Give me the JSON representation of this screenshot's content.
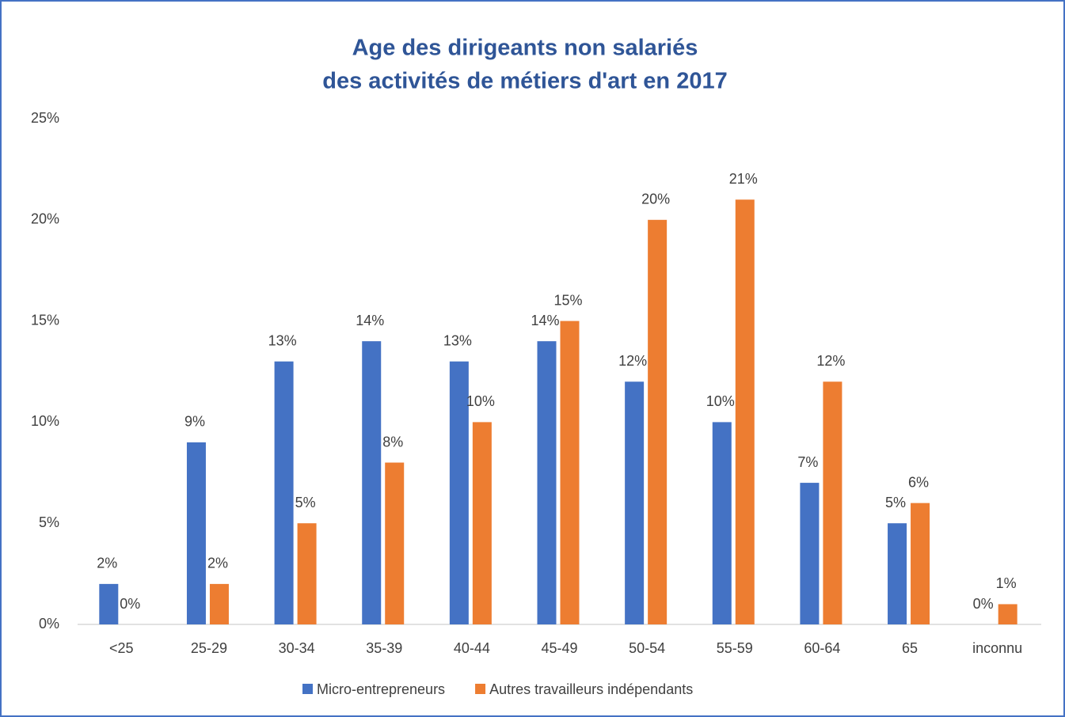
{
  "chart_data": {
    "type": "bar",
    "title": [
      "Age des dirigeants non salariés",
      "des activités de métiers d'art en 2017"
    ],
    "categories": [
      "<25",
      "25-29",
      "30-34",
      "35-39",
      "40-44",
      "45-49",
      "50-54",
      "55-59",
      "60-64",
      "65",
      "inconnu"
    ],
    "series": [
      {
        "name": "Micro-entrepreneurs",
        "color": "#4472c4",
        "values": [
          2,
          9,
          13,
          14,
          13,
          14,
          12,
          10,
          7,
          5,
          0
        ],
        "value_labels": [
          "2%",
          "9%",
          "13%",
          "14%",
          "13%",
          "14%",
          "12%",
          "10%",
          "7%",
          "5%",
          "0%"
        ]
      },
      {
        "name": "Autres travailleurs indépendants",
        "color": "#ed7d31",
        "values": [
          0,
          2,
          5,
          8,
          10,
          15,
          20,
          21,
          12,
          6,
          1
        ],
        "value_labels": [
          "0%",
          "2%",
          "5%",
          "8%",
          "10%",
          "15%",
          "20%",
          "21%",
          "12%",
          "6%",
          "1%"
        ]
      }
    ],
    "ylim": [
      0,
      25
    ],
    "yticks": [
      {
        "value": 0,
        "label": "0%"
      },
      {
        "value": 5,
        "label": "5%"
      },
      {
        "value": 10,
        "label": "10%"
      },
      {
        "value": 15,
        "label": "15%"
      },
      {
        "value": 20,
        "label": "20%"
      },
      {
        "value": 25,
        "label": "25%"
      }
    ],
    "grid": false,
    "legend": "bottom"
  }
}
